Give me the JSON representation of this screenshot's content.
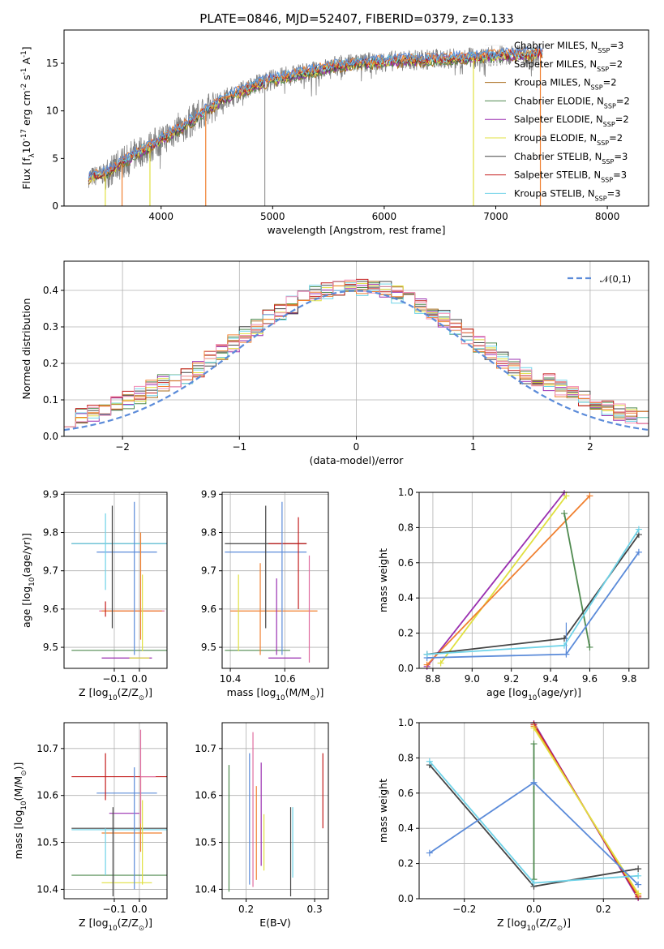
{
  "figure": {
    "title": "PLATE=0846, MJD=52407, FIBERID=0379, z=0.133"
  },
  "chart_data": [
    {
      "id": "spectrum",
      "type": "line",
      "xlabel": "wavelength [Angstrom, rest frame]",
      "ylabel": "Flux [f$_\\lambda$10$^{-17}$ erg cm$^{-2}$ s$^{-1}$ A$^{-1}$]",
      "xlim": [
        3130,
        8370
      ],
      "ylim": [
        0,
        18.5
      ],
      "xticks": [
        4000,
        5000,
        6000,
        7000,
        8000
      ],
      "yticks": [
        0,
        5,
        10,
        15
      ],
      "grid": false,
      "legend_position": "top-right",
      "legend": [
        {
          "name": "Chabrier MILES, N$_{SSP}$=3",
          "color": "#f0f0f0"
        },
        {
          "name": "Salpeter MILES, N$_{SSP}$=2",
          "color": "#f0f0f0"
        },
        {
          "name": "Kroupa MILES, N$_{SSP}$=2",
          "color": "#a86b1a"
        },
        {
          "name": "Chabrier ELODIE, N$_{SSP}$=2",
          "color": "#4f8a4f"
        },
        {
          "name": "Salpeter ELODIE, N$_{SSP}$=2",
          "color": "#9a2fb0"
        },
        {
          "name": "Kroupa ELODIE, N$_{SSP}$=2",
          "color": "#e0e040"
        },
        {
          "name": "Chabrier STELIB, N$_{SSP}$=3",
          "color": "#444444"
        },
        {
          "name": "Salpeter STELIB, N$_{SSP}$=3",
          "color": "#c41e1e"
        },
        {
          "name": "Kroupa STELIB, N$_{SSP}$=3",
          "color": "#6fd3e8"
        }
      ],
      "continuum": {
        "wavelength": [
          3350,
          3500,
          3650,
          3800,
          3900,
          4000,
          4200,
          4400,
          4600,
          4800,
          5000,
          5200,
          5400,
          5600,
          5800,
          6000,
          6200,
          6400,
          6600,
          6800,
          7000,
          7200,
          7400
        ],
        "flux": [
          3.0,
          3.4,
          4.6,
          5.7,
          6.2,
          7.0,
          8.4,
          10.0,
          11.5,
          12.5,
          13.3,
          13.8,
          14.3,
          14.8,
          15.0,
          15.2,
          15.3,
          15.4,
          15.5,
          15.6,
          15.8,
          15.9,
          16.0
        ]
      },
      "data_color": "#808080",
      "model_colors": [
        "#a86b1a",
        "#4f8a4f",
        "#9a2fb0",
        "#e0e040",
        "#444444",
        "#c41e1e",
        "#6fd3e8",
        "#f08030",
        "#5b8bd9"
      ],
      "dropouts_wavelength": [
        3500,
        3650,
        3900,
        4400,
        6800,
        7400
      ]
    },
    {
      "id": "residuals",
      "type": "histogram",
      "xlabel": "(data-model)/error",
      "ylabel": "Normed distribution",
      "xlim": [
        -2.5,
        2.5
      ],
      "ylim": [
        0,
        0.48
      ],
      "xticks": [
        -2,
        -1,
        0,
        1,
        2
      ],
      "yticks": [
        0.0,
        0.1,
        0.2,
        0.3,
        0.4
      ],
      "grid": true,
      "legend_position": "top-right",
      "bin_width": 0.1,
      "reference_curve": {
        "name": "$\\mathcal{N}(0,1)$",
        "color": "#5b8bd9",
        "style": "dashed"
      },
      "series_colors": [
        "#a86b1a",
        "#4f8a4f",
        "#9a2fb0",
        "#e0e040",
        "#444444",
        "#c41e1e",
        "#6fd3e8",
        "#f08030",
        "#f28fb8"
      ]
    },
    {
      "id": "age_vs_Z",
      "type": "scatter",
      "xlabel": "Z [log$_{10}$($Z/Z_\\odot$)]",
      "ylabel": "age  [log$_{10}$($age/yr$)]",
      "xlim": [
        -0.3,
        0.11
      ],
      "ylim": [
        9.445,
        9.905
      ],
      "xticks": [
        -0.1,
        0.0
      ],
      "yticks": [
        9.5,
        9.6,
        9.7,
        9.8,
        9.9
      ],
      "grid": true,
      "points": [
        {
          "x": -0.05,
          "y": 9.771,
          "xerr": 0.22,
          "yerr": 0.0,
          "color": "#444444"
        },
        {
          "x": -0.07,
          "y": 9.771,
          "xerr": 0.2,
          "yerr": 0.0,
          "color": "#6fd3e8"
        },
        {
          "x": -0.05,
          "y": 9.749,
          "xerr": 0.12,
          "yerr": 0.0,
          "color": "#5b8bd9"
        },
        {
          "x": -0.03,
          "y": 9.595,
          "xerr": 0.13,
          "yerr": 0.0,
          "color": "#e06ea0"
        },
        {
          "x": -0.03,
          "y": 9.595,
          "xerr": 0.12,
          "yerr": 0.0,
          "color": "#f08030"
        },
        {
          "x": -0.08,
          "y": 9.492,
          "xerr": 0.19,
          "yerr": 0.0,
          "color": "#4f8a4f"
        },
        {
          "x": -0.05,
          "y": 9.472,
          "xerr": 0.1,
          "yerr": 0.0,
          "color": "#9a2fb0"
        },
        {
          "x": 0.0,
          "y": 9.472,
          "xerr": 0.04,
          "yerr": 0.0,
          "color": "#e0e040"
        },
        {
          "x": -0.108,
          "y": 9.71,
          "xerr": 0.0,
          "yerr": 0.16,
          "color": "#444444"
        },
        {
          "x": -0.02,
          "y": 9.68,
          "xerr": 0.0,
          "yerr": 0.2,
          "color": "#5b8bd9"
        },
        {
          "x": 0.005,
          "y": 9.66,
          "xerr": 0.0,
          "yerr": 0.14,
          "color": "#f08030"
        },
        {
          "x": 0.012,
          "y": 9.59,
          "xerr": 0.0,
          "yerr": 0.1,
          "color": "#e0e040"
        },
        {
          "x": -0.135,
          "y": 9.75,
          "xerr": 0.0,
          "yerr": 0.1,
          "color": "#6fd3e8"
        },
        {
          "x": -0.135,
          "y": 9.6,
          "xerr": 0.0,
          "yerr": 0.02,
          "color": "#c41e1e"
        }
      ]
    },
    {
      "id": "age_vs_mass",
      "type": "scatter",
      "xlabel": "mass [log$_{10}$($M/M_\\odot$)]",
      "ylabel": "",
      "xlim": [
        10.37,
        10.76
      ],
      "ylim": [
        9.445,
        9.905
      ],
      "xticks": [
        10.4,
        10.6
      ],
      "yticks": [
        9.5,
        9.6,
        9.7,
        9.8,
        9.9
      ],
      "grid": true,
      "points": [
        {
          "x": 10.53,
          "y": 9.771,
          "xerr": 0.15,
          "yerr": 0.0,
          "color": "#444444"
        },
        {
          "x": 10.61,
          "y": 9.771,
          "xerr": 0.07,
          "yerr": 0.0,
          "color": "#c41e1e"
        },
        {
          "x": 10.53,
          "y": 9.749,
          "xerr": 0.15,
          "yerr": 0.0,
          "color": "#5b8bd9"
        },
        {
          "x": 10.56,
          "y": 9.595,
          "xerr": 0.16,
          "yerr": 0.0,
          "color": "#f08030"
        },
        {
          "x": 10.5,
          "y": 9.492,
          "xerr": 0.12,
          "yerr": 0.0,
          "color": "#4f8a4f"
        },
        {
          "x": 10.6,
          "y": 9.472,
          "xerr": 0.06,
          "yerr": 0.0,
          "color": "#9a2fb0"
        },
        {
          "x": 10.53,
          "y": 9.71,
          "xerr": 0.0,
          "yerr": 0.16,
          "color": "#444444"
        },
        {
          "x": 10.59,
          "y": 9.68,
          "xerr": 0.0,
          "yerr": 0.2,
          "color": "#5b8bd9"
        },
        {
          "x": 10.65,
          "y": 9.72,
          "xerr": 0.0,
          "yerr": 0.12,
          "color": "#c41e1e"
        },
        {
          "x": 10.57,
          "y": 9.58,
          "xerr": 0.0,
          "yerr": 0.1,
          "color": "#9a2fb0"
        },
        {
          "x": 10.43,
          "y": 9.59,
          "xerr": 0.0,
          "yerr": 0.1,
          "color": "#e0e040"
        },
        {
          "x": 10.51,
          "y": 9.6,
          "xerr": 0.0,
          "yerr": 0.12,
          "color": "#f08030"
        },
        {
          "x": 10.69,
          "y": 9.6,
          "xerr": 0.0,
          "yerr": 0.14,
          "color": "#e06ea0"
        }
      ]
    },
    {
      "id": "mass_weight_vs_age",
      "type": "line",
      "xlabel": "age  [log$_{10}$($age/yr$)]",
      "ylabel": "mass weight",
      "xlim": [
        8.73,
        9.9
      ],
      "ylim": [
        0.0,
        1.0
      ],
      "xticks": [
        8.8,
        9.0,
        9.2,
        9.4,
        9.6,
        9.8
      ],
      "yticks": [
        0.0,
        0.2,
        0.4,
        0.6,
        0.8,
        1.0
      ],
      "grid": true,
      "series": [
        {
          "color": "#9a2fb0",
          "x": [
            8.77,
            9.47
          ],
          "y": [
            0.01,
            1.0
          ]
        },
        {
          "color": "#e0e040",
          "x": [
            8.84,
            9.48
          ],
          "y": [
            0.03,
            0.98
          ]
        },
        {
          "color": "#f08030",
          "x": [
            8.77,
            9.6
          ],
          "y": [
            0.02,
            0.98
          ]
        },
        {
          "color": "#4f8a4f",
          "x": [
            9.47,
            9.6
          ],
          "y": [
            0.88,
            0.12
          ]
        },
        {
          "color": "#444444",
          "x": [
            8.77,
            9.47,
            9.85
          ],
          "y": [
            0.08,
            0.17,
            0.76
          ]
        },
        {
          "color": "#5b8bd9",
          "x": [
            8.77,
            9.48,
            9.85
          ],
          "y": [
            0.06,
            0.08,
            0.66
          ],
          "yerr_at": [
            9.48,
            0.07,
            0.26
          ]
        },
        {
          "color": "#6fd3e8",
          "x": [
            8.77,
            9.47,
            9.85
          ],
          "y": [
            0.08,
            0.13,
            0.79
          ]
        }
      ]
    },
    {
      "id": "mass_vs_Z",
      "type": "scatter",
      "xlabel": "Z [log$_{10}$($Z/Z_\\odot$)]",
      "ylabel": "mass [log$_{10}$($M/M_\\odot$)]",
      "xlim": [
        -0.3,
        0.11
      ],
      "ylim": [
        10.38,
        10.755
      ],
      "xticks": [
        -0.1,
        0.0
      ],
      "yticks": [
        10.4,
        10.5,
        10.6,
        10.7
      ],
      "grid": true,
      "points": [
        {
          "x": -0.05,
          "y": 10.64,
          "xerr": 0.22,
          "yerr": 0.0,
          "color": "#c41e1e"
        },
        {
          "x": -0.05,
          "y": 10.605,
          "xerr": 0.12,
          "yerr": 0.0,
          "color": "#5b8bd9"
        },
        {
          "x": -0.06,
          "y": 10.562,
          "xerr": 0.06,
          "yerr": 0.0,
          "color": "#9a2fb0"
        },
        {
          "x": -0.07,
          "y": 10.53,
          "xerr": 0.2,
          "yerr": 0.0,
          "color": "#444444"
        },
        {
          "x": -0.07,
          "y": 10.527,
          "xerr": 0.2,
          "yerr": 0.0,
          "color": "#6fd3e8"
        },
        {
          "x": -0.03,
          "y": 10.52,
          "xerr": 0.12,
          "yerr": 0.0,
          "color": "#f08030"
        },
        {
          "x": -0.08,
          "y": 10.43,
          "xerr": 0.19,
          "yerr": 0.0,
          "color": "#4f8a4f"
        },
        {
          "x": -0.05,
          "y": 10.414,
          "xerr": 0.1,
          "yerr": 0.0,
          "color": "#e0e040"
        },
        {
          "x": 0.035,
          "y": 10.64,
          "xerr": 0.03,
          "yerr": 0.0,
          "color": "#e06ea0"
        },
        {
          "x": -0.105,
          "y": 10.48,
          "xerr": 0.0,
          "yerr": 0.095,
          "color": "#444444"
        },
        {
          "x": -0.135,
          "y": 10.64,
          "xerr": 0.0,
          "yerr": 0.05,
          "color": "#c41e1e"
        },
        {
          "x": -0.02,
          "y": 10.53,
          "xerr": 0.0,
          "yerr": 0.13,
          "color": "#5b8bd9"
        },
        {
          "x": 0.005,
          "y": 10.56,
          "xerr": 0.0,
          "yerr": 0.08,
          "color": "#f08030"
        },
        {
          "x": 0.012,
          "y": 10.5,
          "xerr": 0.0,
          "yerr": 0.09,
          "color": "#e0e040"
        },
        {
          "x": 0.005,
          "y": 10.64,
          "xerr": 0.0,
          "yerr": 0.1,
          "color": "#e06ea0"
        },
        {
          "x": -0.135,
          "y": 10.48,
          "xerr": 0.0,
          "yerr": 0.05,
          "color": "#6fd3e8"
        }
      ]
    },
    {
      "id": "mass_vs_ebv",
      "type": "scatter",
      "xlabel": "E(B-V)",
      "ylabel": "",
      "xlim": [
        0.165,
        0.32
      ],
      "ylim": [
        10.38,
        10.755
      ],
      "xticks": [
        0.2,
        0.3
      ],
      "yticks": [
        10.4,
        10.5,
        10.6,
        10.7
      ],
      "grid": true,
      "points": [
        {
          "x": 0.175,
          "y": 10.53,
          "yerr": 0.135,
          "color": "#4f8a4f"
        },
        {
          "x": 0.205,
          "y": 10.55,
          "yerr": 0.14,
          "color": "#5b8bd9"
        },
        {
          "x": 0.21,
          "y": 10.57,
          "yerr": 0.165,
          "color": "#e06ea0"
        },
        {
          "x": 0.215,
          "y": 10.52,
          "yerr": 0.1,
          "color": "#f08030"
        },
        {
          "x": 0.222,
          "y": 10.56,
          "yerr": 0.11,
          "color": "#9a2fb0"
        },
        {
          "x": 0.226,
          "y": 10.5,
          "yerr": 0.06,
          "color": "#e0e040"
        },
        {
          "x": 0.265,
          "y": 10.48,
          "yerr": 0.095,
          "color": "#444444"
        },
        {
          "x": 0.268,
          "y": 10.5,
          "yerr": 0.075,
          "color": "#6fd3e8"
        },
        {
          "x": 0.312,
          "y": 10.61,
          "yerr": 0.08,
          "color": "#c41e1e"
        }
      ]
    },
    {
      "id": "mass_weight_vs_Z",
      "type": "line",
      "xlabel": "Z [log$_{10}$($Z/Z_\\odot$)]",
      "ylabel": "mass weight",
      "xlim": [
        -0.33,
        0.33
      ],
      "ylim": [
        0.0,
        1.0
      ],
      "xticks": [
        -0.2,
        0.0,
        0.2
      ],
      "yticks": [
        0.0,
        0.2,
        0.4,
        0.6,
        0.8,
        1.0
      ],
      "grid": true,
      "series": [
        {
          "color": "#9a2fb0",
          "x": [
            0.0,
            0.3
          ],
          "y": [
            1.0,
            0.0
          ]
        },
        {
          "color": "#c41e1e",
          "x": [
            0.0,
            0.3
          ],
          "y": [
            0.99,
            0.01
          ]
        },
        {
          "color": "#f08030",
          "x": [
            0.0,
            0.3
          ],
          "y": [
            0.98,
            0.02
          ]
        },
        {
          "color": "#e0e040",
          "x": [
            0.0,
            0.3
          ],
          "y": [
            0.97,
            0.03
          ]
        },
        {
          "color": "#4f8a4f",
          "x": [
            0.0,
            0.0
          ],
          "y": [
            0.88,
            0.11
          ]
        },
        {
          "color": "#444444",
          "x": [
            -0.3,
            0.0,
            0.3
          ],
          "y": [
            0.76,
            0.07,
            0.17
          ]
        },
        {
          "color": "#6fd3e8",
          "x": [
            -0.3,
            0.0,
            0.3
          ],
          "y": [
            0.78,
            0.09,
            0.13
          ]
        },
        {
          "color": "#5b8bd9",
          "x": [
            -0.3,
            0.0,
            0.3
          ],
          "y": [
            0.26,
            0.66,
            0.08
          ]
        }
      ]
    }
  ]
}
